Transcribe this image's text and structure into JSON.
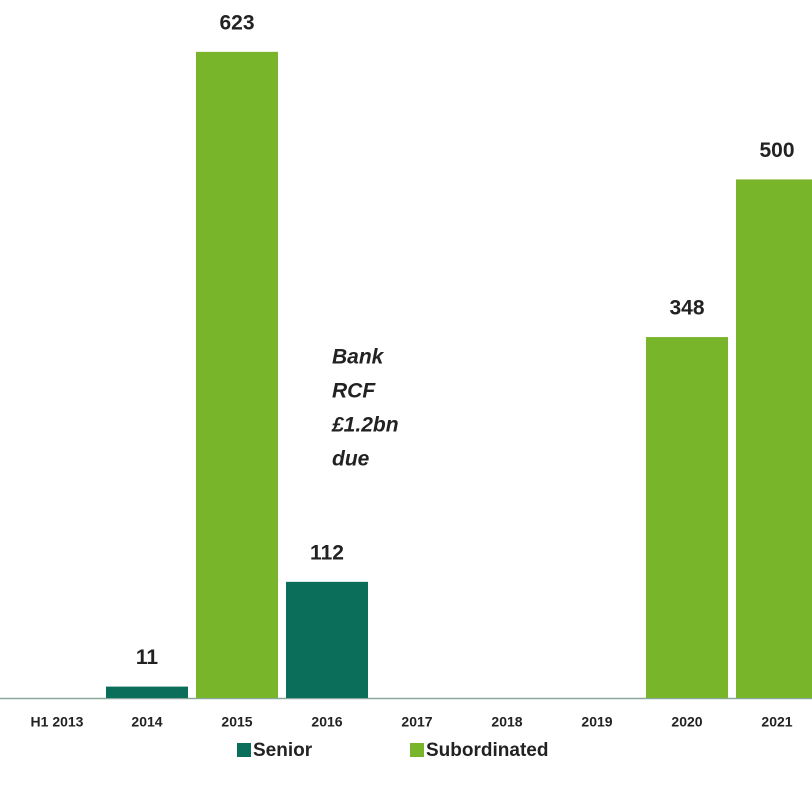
{
  "chart_data": {
    "type": "stacked_bar",
    "categories": [
      "H1 2013",
      "2014",
      "2015",
      "2016",
      "2017",
      "2018",
      "2019",
      "2020",
      "2021"
    ],
    "series": [
      {
        "name": "Senior",
        "color": "#0b6e5b",
        "values": [
          null,
          11,
          null,
          112,
          null,
          null,
          null,
          null,
          null
        ]
      },
      {
        "name": "Subordinated",
        "color": "#78b52a",
        "values": [
          null,
          null,
          623,
          null,
          null,
          null,
          null,
          348,
          500
        ]
      }
    ],
    "annotation": [
      "Bank",
      "RCF",
      "£1.2bn",
      "due"
    ],
    "ylim": [
      0,
      673
    ],
    "legend": "bottom"
  }
}
